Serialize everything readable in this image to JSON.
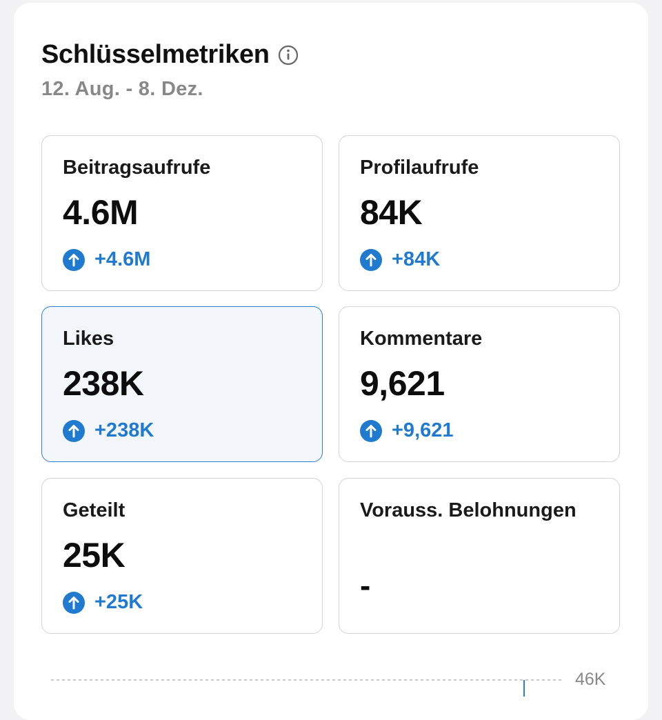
{
  "header": {
    "title": "Schlüsselmetriken",
    "info_icon": "info-circle-icon",
    "date_range": "12. Aug. - 8. Dez."
  },
  "metrics": [
    {
      "label": "Beitragsaufrufe",
      "value": "4.6M",
      "delta": "+4.6M",
      "delta_icon": "arrow-up-circle-icon",
      "selected": false
    },
    {
      "label": "Profilaufrufe",
      "value": "84K",
      "delta": "+84K",
      "delta_icon": "arrow-up-circle-icon",
      "selected": false
    },
    {
      "label": "Likes",
      "value": "238K",
      "delta": "+238K",
      "delta_icon": "arrow-up-circle-icon",
      "selected": true
    },
    {
      "label": "Kommentare",
      "value": "9,621",
      "delta": "+9,621",
      "delta_icon": "arrow-up-circle-icon",
      "selected": false
    },
    {
      "label": "Geteilt",
      "value": "25K",
      "delta": "+25K",
      "delta_icon": "arrow-up-circle-icon",
      "selected": false
    },
    {
      "label": "Vorauss. Belohnungen",
      "value": "-",
      "delta": null,
      "selected": false
    }
  ],
  "chart": {
    "y_tick_label": "46K"
  },
  "colors": {
    "accent": "#1f7ad0",
    "selected_border": "#2a7fd4",
    "selected_background": "#f3f7fc",
    "muted_text": "#888888"
  }
}
